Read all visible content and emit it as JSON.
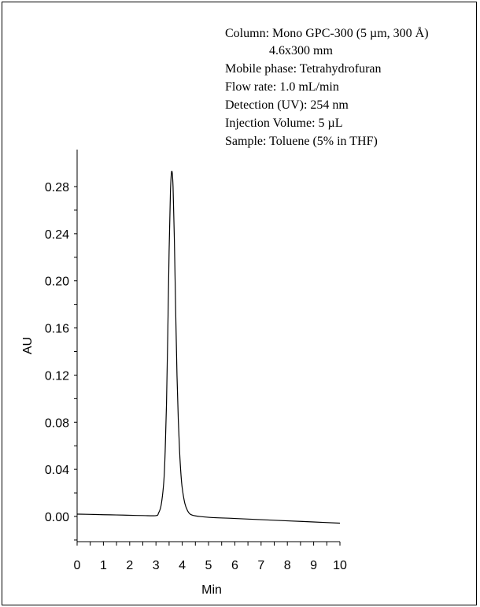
{
  "chart_data": {
    "type": "line",
    "title": "",
    "xlabel": "Min",
    "ylabel": "AU",
    "xlim": [
      0,
      10
    ],
    "ylim": [
      -0.02,
      0.3
    ],
    "grid": false,
    "x_ticks": [
      {
        "value": 0,
        "label": "0"
      },
      {
        "value": 1,
        "label": "1"
      },
      {
        "value": 2,
        "label": "2"
      },
      {
        "value": 3,
        "label": "3"
      },
      {
        "value": 4,
        "label": "4"
      },
      {
        "value": 5,
        "label": "5"
      },
      {
        "value": 6,
        "label": "6"
      },
      {
        "value": 7,
        "label": "7"
      },
      {
        "value": 8,
        "label": "8"
      },
      {
        "value": 9,
        "label": "9"
      },
      {
        "value": 10,
        "label": "10"
      }
    ],
    "y_ticks": [
      {
        "value": 0.0,
        "label": "0.00"
      },
      {
        "value": 0.04,
        "label": "0.04"
      },
      {
        "value": 0.08,
        "label": "0.08"
      },
      {
        "value": 0.12,
        "label": "0.12"
      },
      {
        "value": 0.16,
        "label": "0.16"
      },
      {
        "value": 0.2,
        "label": "0.20"
      },
      {
        "value": 0.24,
        "label": "0.24"
      },
      {
        "value": 0.28,
        "label": "0.28"
      }
    ],
    "series": [
      {
        "x": [
          0.0,
          0.5,
          1.0,
          1.5,
          2.0,
          2.5,
          3.0,
          3.1,
          3.2,
          3.3,
          3.35,
          3.4,
          3.45,
          3.5,
          3.55,
          3.6,
          3.65,
          3.7,
          3.75,
          3.8,
          3.85,
          3.9,
          3.95,
          4.0,
          4.1,
          4.2,
          4.3,
          4.5,
          5.0,
          6.0,
          7.0,
          8.0,
          9.0,
          10.0
        ],
        "y": [
          0.002,
          0.0018,
          0.0015,
          0.0013,
          0.001,
          0.0008,
          0.0007,
          0.003,
          0.01,
          0.03,
          0.055,
          0.095,
          0.155,
          0.225,
          0.275,
          0.293,
          0.28,
          0.235,
          0.175,
          0.12,
          0.082,
          0.055,
          0.036,
          0.024,
          0.011,
          0.005,
          0.002,
          0.0005,
          -0.0007,
          -0.0017,
          -0.0027,
          -0.0037,
          -0.0047,
          -0.0057
        ]
      }
    ],
    "annotation_lines": [
      "Column: Mono GPC-300 (5 µm, 300 Å)",
      "4.6x300 mm",
      "Mobile phase: Tetrahydrofuran",
      "Flow rate: 1.0 mL/min",
      "Detection (UV): 254 nm",
      "Injection Volume: 5 µL",
      "Sample: Toluene (5% in THF)"
    ]
  }
}
